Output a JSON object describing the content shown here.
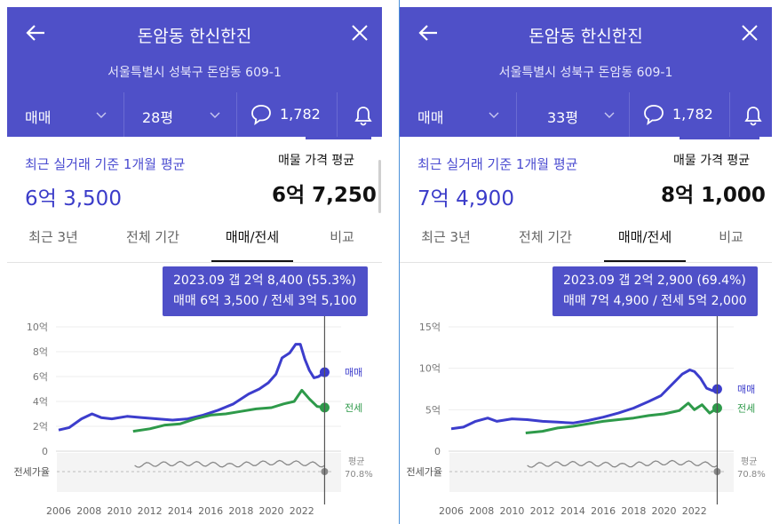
{
  "panels": [
    {
      "header": {
        "title": "돈암동 한신한진",
        "address": "서울특별시 성북구 돈암동 609-1"
      },
      "selectors": {
        "type": "매매",
        "size": "28평",
        "comments": "1,782"
      },
      "summary": {
        "recent_label": "최근 실거래 기준 1개월 평균",
        "recent_value": "6억 3,500",
        "ask_label": "매물 가격 평균",
        "ask_value": "6억 7,250"
      },
      "tabs": [
        "최근 3년",
        "전체 기간",
        "매매/전세",
        "비교"
      ],
      "active_tab": 2,
      "tooltip": {
        "line1": "2023.09  갭 2억 8,400 (55.3%)",
        "line2": "매매 6억 3,500 / 전세 3억 5,100"
      },
      "labels": {
        "sale": "매매",
        "jeonse": "전세",
        "ratio": "전세가율",
        "avg": "평균",
        "avg_value": "70.8%"
      },
      "chart_data": {
        "type": "line",
        "xlim": [
          2006,
          2024
        ],
        "ylim": [
          0,
          10
        ],
        "y_ticks": [
          "0",
          "2억",
          "4억",
          "6억",
          "8억",
          "10억"
        ],
        "y_tick_values": [
          0,
          2,
          4,
          6,
          8,
          10
        ],
        "x_ticks": [
          "2006",
          "2008",
          "2010",
          "2012",
          "2014",
          "2016",
          "2018",
          "2020",
          "2022"
        ],
        "series": [
          {
            "name": "매매",
            "color": "#3c3dcc",
            "x": [
              2006,
              2006.7,
              2007.5,
              2008.2,
              2008.8,
              2009.5,
              2010.5,
              2011.5,
              2012.5,
              2013.5,
              2014.5,
              2015.5,
              2016.5,
              2017.5,
              2018.5,
              2019.2,
              2019.8,
              2020.3,
              2020.7,
              2021.2,
              2021.6,
              2021.9,
              2022.2,
              2022.5,
              2022.8,
              2023.1,
              2023.5
            ],
            "y": [
              1.7,
              1.9,
              2.6,
              3.0,
              2.7,
              2.6,
              2.8,
              2.7,
              2.6,
              2.5,
              2.6,
              2.9,
              3.3,
              3.8,
              4.6,
              5.0,
              5.5,
              6.2,
              7.5,
              7.9,
              8.6,
              8.6,
              7.4,
              6.5,
              5.9,
              6.0,
              6.35
            ]
          },
          {
            "name": "전세",
            "color": "#2e9a4a",
            "x": [
              2010.9,
              2012,
              2013,
              2014,
              2015,
              2016,
              2017,
              2018,
              2019,
              2020,
              2020.8,
              2021.5,
              2022,
              2022.5,
              2023,
              2023.5
            ],
            "y": [
              1.6,
              1.8,
              2.1,
              2.2,
              2.6,
              2.9,
              3.0,
              3.2,
              3.4,
              3.5,
              3.8,
              4.0,
              4.9,
              4.2,
              3.6,
              3.51
            ]
          }
        ],
        "ratio_avg": 70.8
      }
    },
    {
      "header": {
        "title": "돈암동 한신한진",
        "address": "서울특별시 성북구 돈암동 609-1"
      },
      "selectors": {
        "type": "매매",
        "size": "33평",
        "comments": "1,782"
      },
      "summary": {
        "recent_label": "최근 실거래 기준 1개월 평균",
        "recent_value": "7억 4,900",
        "ask_label": "매물 가격 평균",
        "ask_value": "8억 1,000"
      },
      "tabs": [
        "최근 3년",
        "전체 기간",
        "매매/전세",
        "비교"
      ],
      "active_tab": 2,
      "tooltip": {
        "line1": "2023.09  갭 2억 2,900 (69.4%)",
        "line2": "매매 7억 4,900 / 전세 5억 2,000"
      },
      "labels": {
        "sale": "매매",
        "jeonse": "전세",
        "ratio": "전세가율",
        "avg": "평균",
        "avg_value": "70.8%"
      },
      "chart_data": {
        "type": "line",
        "xlim": [
          2006,
          2024
        ],
        "ylim": [
          0,
          15
        ],
        "y_ticks": [
          "0",
          "5억",
          "10억",
          "15억"
        ],
        "y_tick_values": [
          0,
          5,
          10,
          15
        ],
        "x_ticks": [
          "2006",
          "2008",
          "2010",
          "2012",
          "2014",
          "2016",
          "2018",
          "2020",
          "2022"
        ],
        "series": [
          {
            "name": "매매",
            "color": "#3c3dcc",
            "x": [
              2006,
              2006.8,
              2007.6,
              2008.4,
              2009,
              2010,
              2011,
              2012,
              2013,
              2014,
              2015,
              2016,
              2017,
              2018,
              2019,
              2019.8,
              2020.5,
              2021.2,
              2021.7,
              2022,
              2022.4,
              2022.8,
              2023.2,
              2023.5
            ],
            "y": [
              2.7,
              2.9,
              3.6,
              4.0,
              3.6,
              3.9,
              3.8,
              3.6,
              3.5,
              3.4,
              3.7,
              4.1,
              4.6,
              5.2,
              6.0,
              6.7,
              8.0,
              9.3,
              9.8,
              9.6,
              8.8,
              7.6,
              7.3,
              7.49
            ]
          },
          {
            "name": "전세",
            "color": "#2e9a4a",
            "x": [
              2010.9,
              2012,
              2013,
              2014,
              2015,
              2016,
              2017,
              2018,
              2019,
              2020,
              2021,
              2021.6,
              2022,
              2022.5,
              2023,
              2023.5
            ],
            "y": [
              2.2,
              2.4,
              2.8,
              3.0,
              3.3,
              3.6,
              3.8,
              4.0,
              4.3,
              4.5,
              4.9,
              5.8,
              5.0,
              5.6,
              4.6,
              5.2
            ]
          }
        ],
        "ratio_avg": 70.8
      }
    }
  ]
}
